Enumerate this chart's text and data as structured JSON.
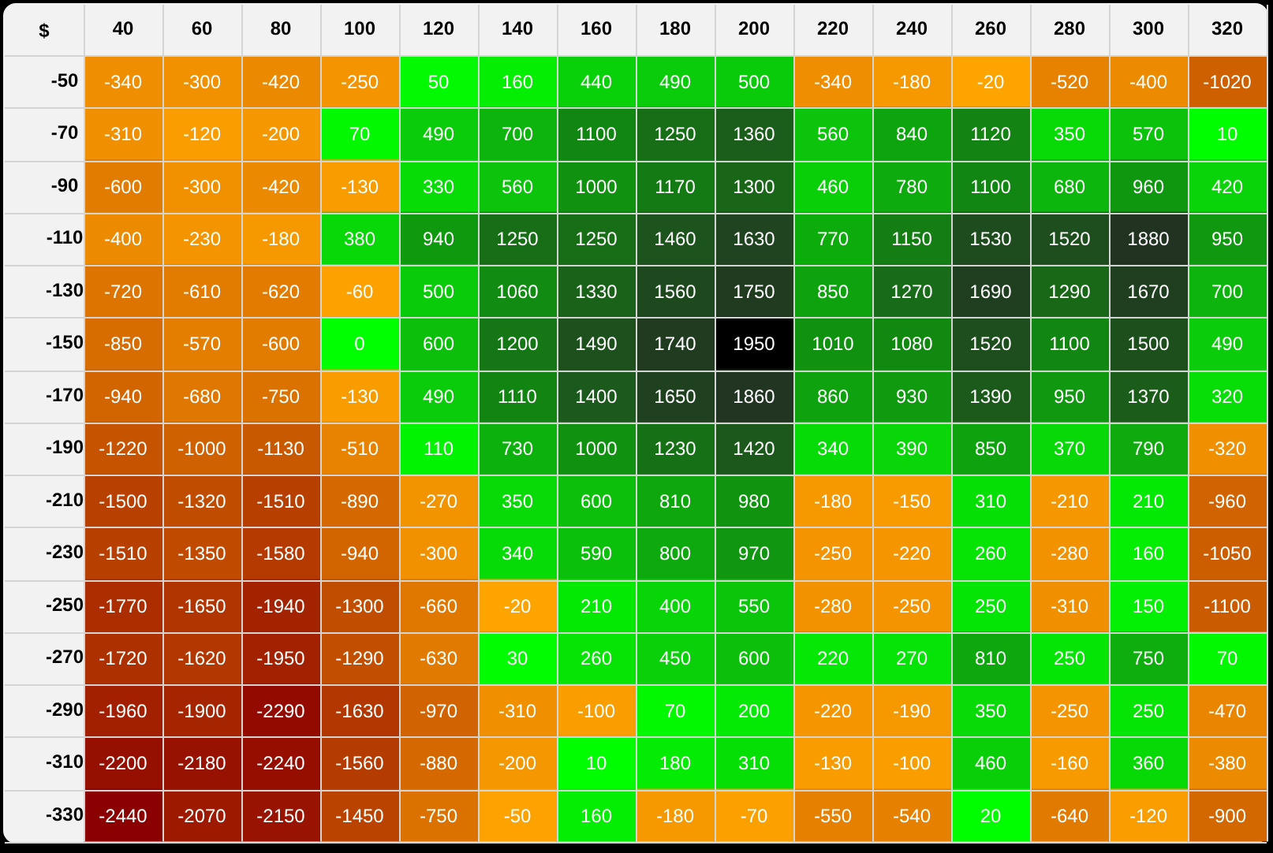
{
  "chart_data": {
    "type": "heatmap",
    "ylabel": "$",
    "grid": true,
    "data_labels": true,
    "categories": [
      "40",
      "60",
      "80",
      "100",
      "120",
      "140",
      "160",
      "180",
      "200",
      "220",
      "240",
      "260",
      "280",
      "300",
      "320"
    ],
    "y_categories": [
      "-50",
      "-70",
      "-90",
      "-110",
      "-130",
      "-150",
      "-170",
      "-190",
      "-210",
      "-230",
      "-250",
      "-270",
      "-290",
      "-310",
      "-330"
    ],
    "cells": [
      [
        -340,
        -300,
        -420,
        -250,
        50,
        160,
        440,
        490,
        500,
        -340,
        -180,
        -20,
        -520,
        -400,
        -1020
      ],
      [
        -310,
        -120,
        -200,
        70,
        490,
        700,
        1100,
        1250,
        1360,
        560,
        840,
        1120,
        350,
        570,
        10
      ],
      [
        -600,
        -300,
        -420,
        -130,
        330,
        560,
        1000,
        1170,
        1300,
        460,
        780,
        1100,
        680,
        960,
        420
      ],
      [
        -400,
        -230,
        -180,
        380,
        940,
        1250,
        1250,
        1460,
        1630,
        770,
        1150,
        1530,
        1520,
        1880,
        950
      ],
      [
        -720,
        -610,
        -620,
        -60,
        500,
        1060,
        1330,
        1560,
        1750,
        850,
        1270,
        1690,
        1290,
        1670,
        700
      ],
      [
        -850,
        -570,
        -600,
        0,
        600,
        1200,
        1490,
        1740,
        1950,
        1010,
        1080,
        1520,
        1100,
        1500,
        490
      ],
      [
        -940,
        -680,
        -750,
        -130,
        490,
        1110,
        1400,
        1650,
        1860,
        860,
        930,
        1390,
        950,
        1370,
        320
      ],
      [
        -1220,
        -1000,
        -1130,
        -510,
        110,
        730,
        1000,
        1230,
        1420,
        340,
        390,
        850,
        370,
        790,
        -320
      ],
      [
        -1500,
        -1320,
        -1510,
        -890,
        -270,
        350,
        600,
        810,
        980,
        -180,
        -150,
        310,
        -210,
        210,
        -960
      ],
      [
        -1510,
        -1350,
        -1580,
        -940,
        -300,
        340,
        590,
        800,
        970,
        -250,
        -220,
        260,
        -280,
        160,
        -1050
      ],
      [
        -1770,
        -1650,
        -1940,
        -1300,
        -660,
        -20,
        210,
        400,
        550,
        -280,
        -250,
        250,
        -310,
        150,
        -1100
      ],
      [
        -1720,
        -1620,
        -1950,
        -1290,
        -630,
        30,
        260,
        450,
        600,
        220,
        270,
        810,
        250,
        750,
        70
      ],
      [
        -1960,
        -1900,
        -2290,
        -1630,
        -970,
        -310,
        -100,
        70,
        200,
        -220,
        -190,
        350,
        -250,
        250,
        -470
      ],
      [
        -2200,
        -2180,
        -2240,
        -1560,
        -880,
        -200,
        10,
        180,
        310,
        -130,
        -100,
        460,
        -160,
        360,
        -380
      ],
      [
        -2440,
        -2070,
        -2150,
        -1450,
        -750,
        -50,
        160,
        -180,
        -70,
        -550,
        -540,
        20,
        -640,
        -120,
        -900
      ]
    ]
  }
}
